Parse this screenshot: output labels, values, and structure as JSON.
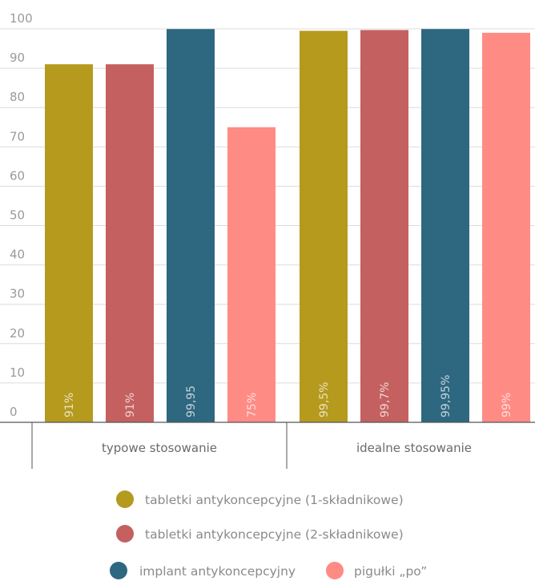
{
  "chart_data": {
    "type": "bar",
    "categories": [
      "typowe stosowanie",
      "idealne stosowanie"
    ],
    "series": [
      {
        "name": "tabletki antykoncepcyjne (1-składnikowe)",
        "values": [
          91,
          99.5
        ],
        "labels": [
          "91%",
          "99,5%"
        ],
        "color": "#b59a1e"
      },
      {
        "name": "tabletki antykoncepcyjne (2-składnikowe)",
        "values": [
          91,
          99.7
        ],
        "labels": [
          "91%",
          "99,7%"
        ],
        "color": "#c56060"
      },
      {
        "name": "implant antykoncepcyjny",
        "values": [
          99.95,
          99.95
        ],
        "labels": [
          "99,95",
          "99,95%"
        ],
        "color": "#2e6780"
      },
      {
        "name": "pigułki „po”",
        "values": [
          75,
          99
        ],
        "labels": [
          "75%",
          "99%"
        ],
        "color": "#ff8b85"
      }
    ],
    "ylim": [
      0,
      100
    ],
    "yticks": [
      0,
      10,
      20,
      30,
      40,
      50,
      60,
      70,
      80,
      90,
      100
    ],
    "grid": true,
    "legend_position": "bottom"
  }
}
